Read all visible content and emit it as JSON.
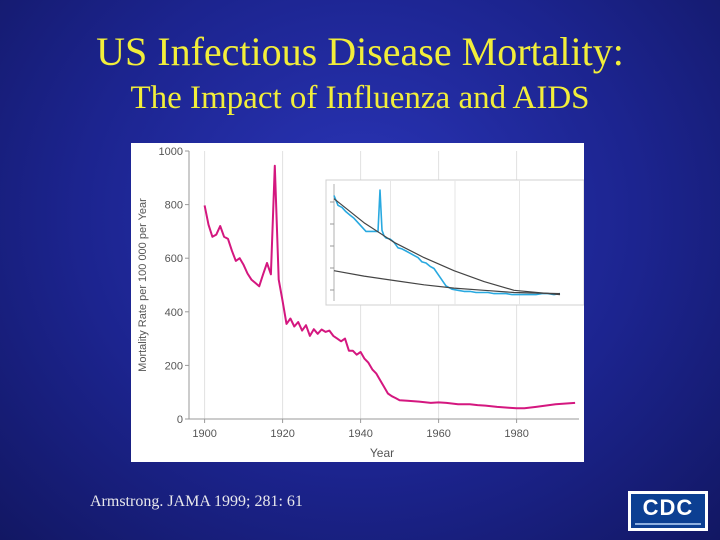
{
  "slide": {
    "title": "US Infectious Disease Mortality:",
    "subtitle": "The Impact of Influenza and AIDS",
    "citation": "Armstrong. JAMA 1999; 281: 61",
    "logo_text": "CDC",
    "colors": {
      "background": "#1c248f",
      "title": "#f2ee3a",
      "main_line": "#d4177f",
      "inset_line": "#29a9e0",
      "inset_trend": "#444444"
    }
  },
  "chart_data": [
    {
      "type": "line",
      "title": "",
      "xlabel": "Year",
      "ylabel": "Mortality Rate per 100 000 per Year",
      "xlim": [
        1896,
        1996
      ],
      "ylim": [
        0,
        1000
      ],
      "xticks": [
        "1900",
        "1920",
        "1940",
        "1960",
        "1980"
      ],
      "yticks": [
        "1000",
        "800",
        "600",
        "400",
        "200",
        "0"
      ],
      "grid": true,
      "series": [
        {
          "x": [
            1900,
            1901,
            1902,
            1903,
            1904,
            1905,
            1906,
            1907,
            1908,
            1909,
            1910,
            1911,
            1912,
            1913,
            1914,
            1915,
            1916,
            1917,
            1918,
            1919,
            1920,
            1921,
            1922,
            1923,
            1924,
            1925,
            1926,
            1927,
            1928,
            1929,
            1930,
            1931,
            1932,
            1933,
            1934,
            1935,
            1936,
            1937,
            1938,
            1939,
            1940,
            1941,
            1942,
            1943,
            1944,
            1945,
            1946,
            1947,
            1948,
            1949,
            1950,
            1952,
            1955,
            1958,
            1960,
            1962,
            1965,
            1968,
            1970,
            1972,
            1975,
            1978,
            1980,
            1982,
            1985,
            1990,
            1995
          ],
          "y": [
            797,
            725,
            680,
            688,
            720,
            680,
            672,
            628,
            590,
            600,
            575,
            543,
            520,
            508,
            495,
            540,
            582,
            540,
            945,
            520,
            440,
            355,
            375,
            345,
            362,
            330,
            350,
            310,
            335,
            318,
            334,
            325,
            330,
            310,
            300,
            290,
            300,
            255,
            255,
            240,
            250,
            225,
            210,
            185,
            170,
            145,
            120,
            95,
            85,
            78,
            70,
            68,
            65,
            60,
            62,
            60,
            55,
            55,
            52,
            50,
            45,
            42,
            40,
            40,
            45,
            55,
            60
          ]
        }
      ]
    },
    {
      "type": "line",
      "title": "",
      "series": [
        {
          "x": [
            0,
            4,
            8,
            12,
            16,
            20,
            24,
            28,
            32,
            36,
            40,
            44,
            46,
            48,
            50,
            52,
            56,
            60,
            64,
            68,
            72,
            76,
            80,
            84,
            88,
            92,
            96,
            100,
            106,
            112,
            118,
            124,
            130,
            136,
            142,
            148,
            154,
            160,
            166,
            172,
            178,
            184,
            190,
            196,
            202,
            208,
            214,
            220,
            226
          ],
          "y": [
            0.95,
            0.86,
            0.84,
            0.8,
            0.77,
            0.74,
            0.7,
            0.66,
            0.62,
            0.62,
            0.62,
            0.62,
            1.0,
            0.63,
            0.58,
            0.56,
            0.55,
            0.52,
            0.47,
            0.46,
            0.44,
            0.42,
            0.4,
            0.38,
            0.34,
            0.33,
            0.3,
            0.28,
            0.2,
            0.12,
            0.09,
            0.08,
            0.07,
            0.07,
            0.06,
            0.06,
            0.06,
            0.05,
            0.05,
            0.05,
            0.04,
            0.04,
            0.04,
            0.04,
            0.04,
            0.05,
            0.05,
            0.04,
            0.05
          ]
        },
        {
          "x": [
            0,
            30,
            60,
            90,
            120,
            150,
            180,
            226
          ],
          "y": [
            0.92,
            0.7,
            0.52,
            0.38,
            0.26,
            0.16,
            0.08,
            0.04
          ]
        },
        {
          "x": [
            0,
            30,
            60,
            90,
            120,
            150,
            180,
            226
          ],
          "y": [
            0.26,
            0.21,
            0.17,
            0.13,
            0.1,
            0.08,
            0.06,
            0.05
          ]
        }
      ]
    }
  ]
}
